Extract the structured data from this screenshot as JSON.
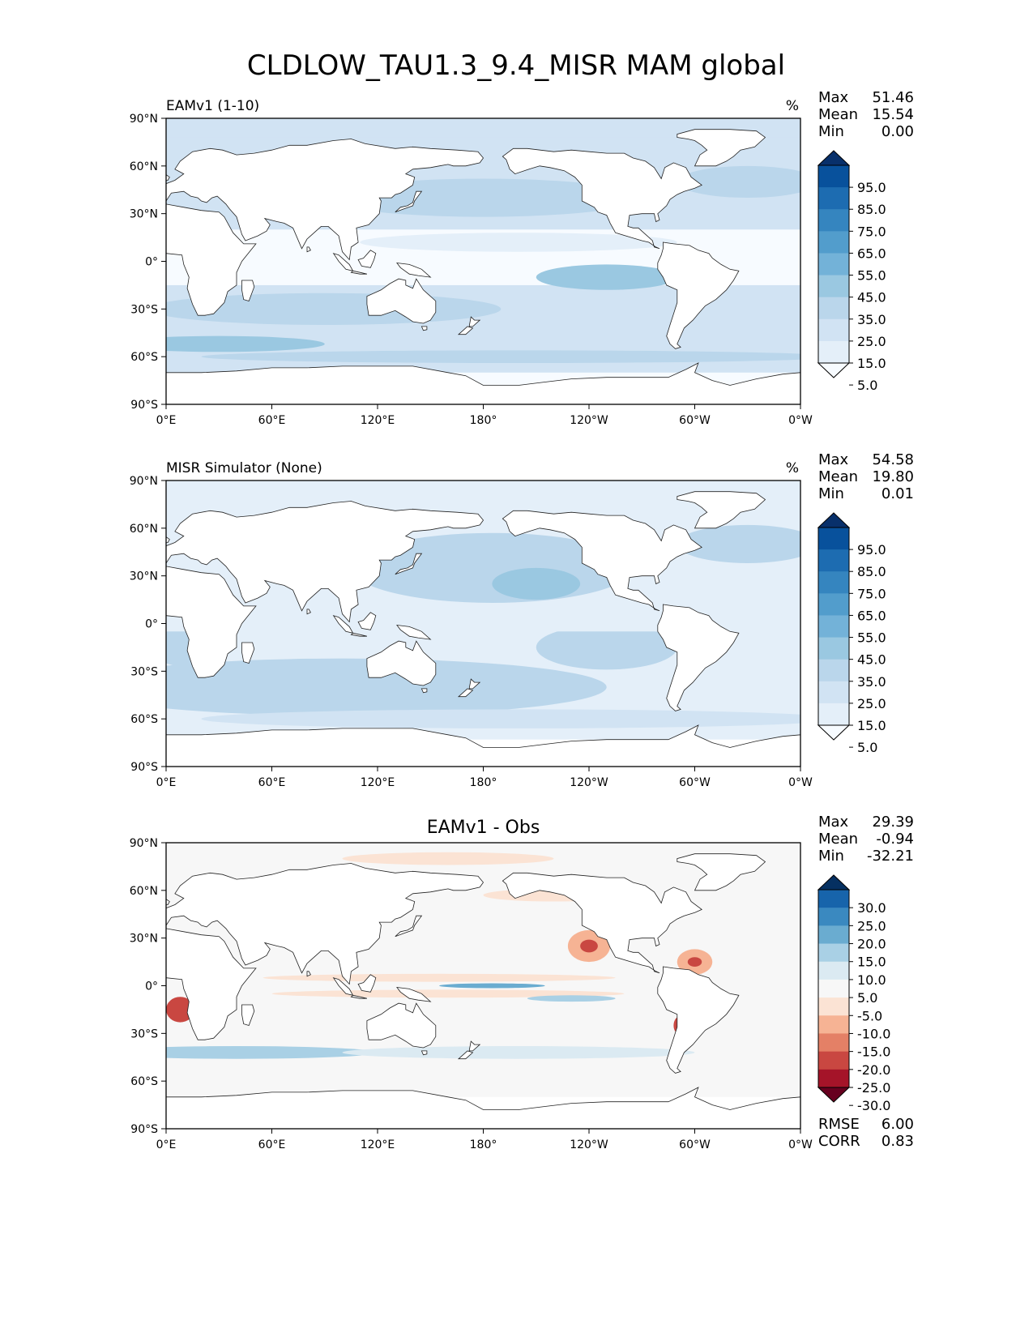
{
  "title": "CLDLOW_TAU1.3_9.4_MISR MAM global",
  "axes": {
    "lat_ticks": [
      "90°N",
      "60°N",
      "30°N",
      "0°",
      "30°S",
      "60°S",
      "90°S"
    ],
    "lon_ticks": [
      "0°E",
      "60°E",
      "120°E",
      "180°",
      "120°W",
      "60°W",
      "0°W"
    ]
  },
  "colors": {
    "seq": [
      "#f7fbff",
      "#e4eff9",
      "#d1e3f3",
      "#bad6eb",
      "#9ac8e1",
      "#73b2d8",
      "#529dcc",
      "#3585bf",
      "#1d6cb1",
      "#08519c",
      "#08306b"
    ],
    "div": [
      "#67001f",
      "#a51429",
      "#c94741",
      "#e48066",
      "#f6b394",
      "#fbe3d4",
      "#f7f7f7",
      "#dbeaf2",
      "#a9d0e5",
      "#6aacd0",
      "#3a89c0",
      "#1764ab",
      "#053061"
    ],
    "land": "#ffffff",
    "coast": "#222222"
  },
  "panels": [
    {
      "label": "EAMv1 (1-10)",
      "heading": "",
      "units": "%",
      "stats": [
        {
          "name": "Max",
          "value": "51.46"
        },
        {
          "name": "Mean",
          "value": "15.54"
        },
        {
          "name": "Min",
          "value": "0.00"
        }
      ],
      "colorbar": {
        "palette": "seq",
        "labels": [
          "95.0",
          "85.0",
          "75.0",
          "65.0",
          "55.0",
          "45.0",
          "35.0",
          "25.0",
          "15.0",
          "5.0"
        ]
      },
      "metrics": []
    },
    {
      "label": "MISR Simulator (None)",
      "heading": "",
      "units": "%",
      "stats": [
        {
          "name": "Max",
          "value": "54.58"
        },
        {
          "name": "Mean",
          "value": "19.80"
        },
        {
          "name": "Min",
          "value": "0.01"
        }
      ],
      "colorbar": {
        "palette": "seq",
        "labels": [
          "95.0",
          "85.0",
          "75.0",
          "65.0",
          "55.0",
          "45.0",
          "35.0",
          "25.0",
          "15.0",
          "5.0"
        ]
      },
      "metrics": []
    },
    {
      "label": "",
      "heading": "EAMv1 - Obs",
      "units": "",
      "stats": [
        {
          "name": "Max",
          "value": "29.39"
        },
        {
          "name": "Mean",
          "value": "-0.94"
        },
        {
          "name": "Min",
          "value": "-32.21"
        }
      ],
      "colorbar": {
        "palette": "div",
        "labels": [
          "30.0",
          "25.0",
          "20.0",
          "15.0",
          "10.0",
          "5.0",
          "-5.0",
          "-10.0",
          "-15.0",
          "-20.0",
          "-25.0",
          "-30.0"
        ]
      },
      "metrics": [
        {
          "name": "RMSE",
          "value": "6.00"
        },
        {
          "name": "CORR",
          "value": "0.83"
        }
      ]
    }
  ]
}
